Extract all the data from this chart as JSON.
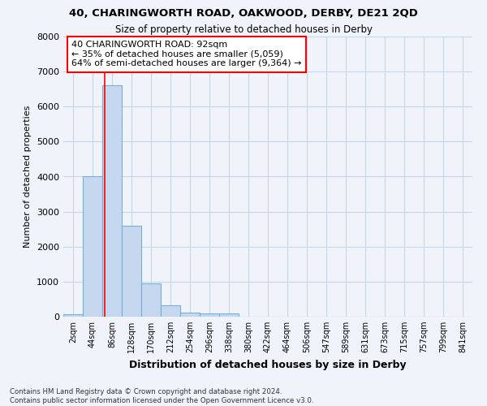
{
  "title1": "40, CHARINGWORTH ROAD, OAKWOOD, DERBY, DE21 2QD",
  "title2": "Size of property relative to detached houses in Derby",
  "xlabel": "Distribution of detached houses by size in Derby",
  "ylabel": "Number of detached properties",
  "footnote": "Contains HM Land Registry data © Crown copyright and database right 2024.\nContains public sector information licensed under the Open Government Licence v3.0.",
  "bar_labels": [
    "2sqm",
    "44sqm",
    "86sqm",
    "128sqm",
    "170sqm",
    "212sqm",
    "254sqm",
    "296sqm",
    "338sqm",
    "380sqm",
    "422sqm",
    "464sqm",
    "506sqm",
    "547sqm",
    "589sqm",
    "631sqm",
    "673sqm",
    "715sqm",
    "757sqm",
    "799sqm",
    "841sqm"
  ],
  "bar_values": [
    60,
    4000,
    6600,
    2600,
    950,
    320,
    120,
    100,
    90,
    0,
    0,
    0,
    0,
    0,
    0,
    0,
    0,
    0,
    0,
    0,
    0
  ],
  "bar_color": "#c5d8f0",
  "bar_edge_color": "#7aaed4",
  "grid_color": "#c8d4e8",
  "background_color": "#f0f4fa",
  "plot_bg_color": "#f0f4fa",
  "annotation_box_text": "40 CHARINGWORTH ROAD: 92sqm\n← 35% of detached houses are smaller (5,059)\n64% of semi-detached houses are larger (9,364) →",
  "annotation_box_color": "white",
  "annotation_box_edge_color": "red",
  "property_line_x": 92,
  "bin_width": 42,
  "ylim": [
    0,
    8000
  ],
  "yticks": [
    0,
    1000,
    2000,
    3000,
    4000,
    5000,
    6000,
    7000,
    8000
  ]
}
